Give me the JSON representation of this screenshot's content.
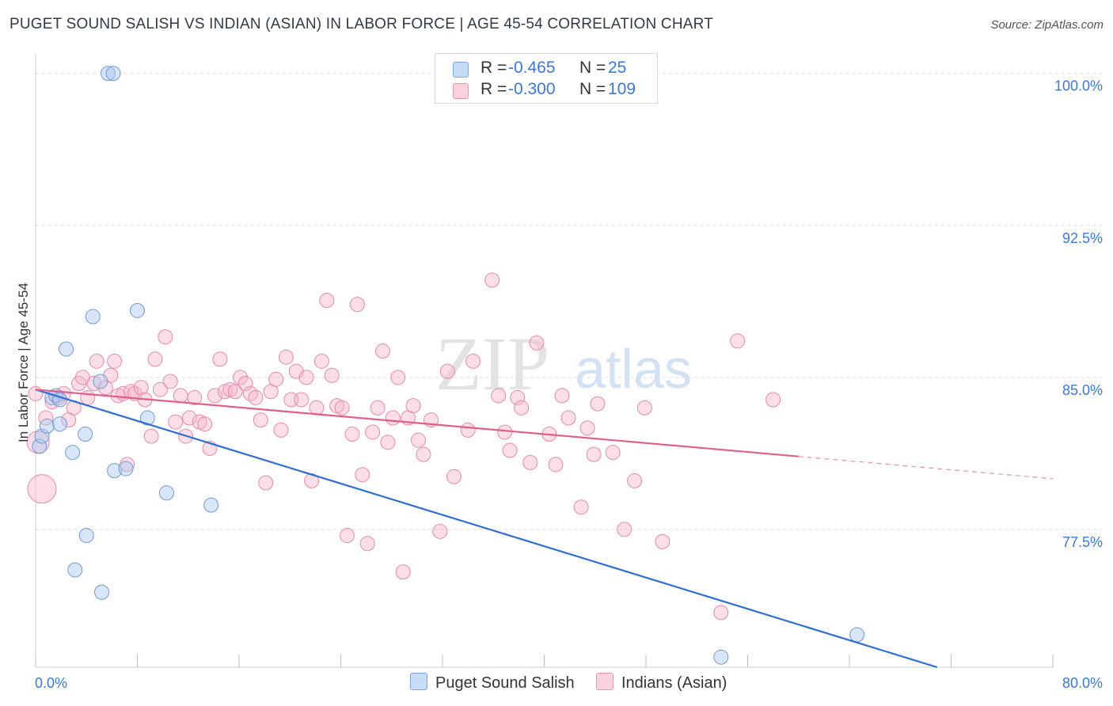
{
  "title": "PUGET SOUND SALISH VS INDIAN (ASIAN) IN LABOR FORCE | AGE 45-54 CORRELATION CHART",
  "source": "Source: ZipAtlas.com",
  "watermark": {
    "zip": "ZIP",
    "atlas": "atlas"
  },
  "legend_top": {
    "rows": [
      {
        "r_label": "R =",
        "r_value": "-0.465",
        "n_label": "N =",
        "n_value": "25",
        "color": "#a9c8f0"
      },
      {
        "r_label": "R =",
        "r_value": "-0.300",
        "n_label": "N =",
        "n_value": "109",
        "color": "#f7b6ca"
      }
    ]
  },
  "chart_data": {
    "type": "scatter",
    "xlabel": "",
    "ylabel": "In Labor Force | Age 45-54",
    "xlim": [
      0,
      80
    ],
    "ylim": [
      70.7,
      101.2
    ],
    "x_tick_labels": [
      "0.0%",
      "80.0%"
    ],
    "y_ticks": [
      77.5,
      85.0,
      92.5,
      100.0
    ],
    "y_tick_labels": [
      "77.5%",
      "85.0%",
      "92.5%",
      "100.0%"
    ],
    "grid": true,
    "legend_placement": "bottom",
    "series": [
      {
        "name": "Puget Sound Salish",
        "color": "#a9c8f0",
        "stroke": "#6d9bd8",
        "trend_color": "#2f6fd1",
        "trend": {
          "x": [
            0,
            70.9
          ],
          "y": [
            84.4,
            70.7
          ]
        },
        "points": [
          [
            0.3,
            81.6
          ],
          [
            0.5,
            82.1
          ],
          [
            0.9,
            82.6
          ],
          [
            1.3,
            84.0
          ],
          [
            1.6,
            84.1
          ],
          [
            1.9,
            83.9
          ],
          [
            1.9,
            82.7
          ],
          [
            2.4,
            86.4
          ],
          [
            2.9,
            81.3
          ],
          [
            3.1,
            75.5
          ],
          [
            3.9,
            82.2
          ],
          [
            4.0,
            77.2
          ],
          [
            4.5,
            88.0
          ],
          [
            5.1,
            84.8
          ],
          [
            5.2,
            74.4
          ],
          [
            5.7,
            100.0
          ],
          [
            6.1,
            100.0
          ],
          [
            6.2,
            80.4
          ],
          [
            7.1,
            80.5
          ],
          [
            8.0,
            88.3
          ],
          [
            8.8,
            83.0
          ],
          [
            10.3,
            79.3
          ],
          [
            13.8,
            78.7
          ],
          [
            53.9,
            71.2
          ],
          [
            64.6,
            72.3
          ]
        ]
      },
      {
        "name": "Indians (Asian)",
        "color": "#f7b6ca",
        "stroke": "#e88aa8",
        "trend_color": "#e0608a",
        "trend": {
          "x": [
            0,
            60
          ],
          "y": [
            84.4,
            81.1
          ]
        },
        "trend_dashed": {
          "x": [
            60,
            80
          ],
          "y": [
            81.1,
            80.0
          ]
        },
        "points": [
          [
            0.2,
            81.8
          ],
          [
            0.5,
            79.5
          ],
          [
            0.8,
            83.0
          ],
          [
            1.3,
            83.8
          ],
          [
            1.8,
            84.0
          ],
          [
            2.2,
            84.2
          ],
          [
            2.6,
            82.9
          ],
          [
            3.0,
            83.5
          ],
          [
            3.4,
            84.7
          ],
          [
            3.7,
            85.0
          ],
          [
            4.1,
            84.0
          ],
          [
            4.6,
            84.7
          ],
          [
            4.8,
            85.8
          ],
          [
            5.5,
            84.5
          ],
          [
            5.9,
            85.1
          ],
          [
            6.2,
            85.8
          ],
          [
            6.5,
            84.1
          ],
          [
            6.9,
            84.2
          ],
          [
            7.2,
            80.7
          ],
          [
            7.5,
            84.3
          ],
          [
            7.8,
            84.2
          ],
          [
            8.3,
            84.5
          ],
          [
            8.6,
            83.9
          ],
          [
            9.1,
            82.1
          ],
          [
            9.4,
            85.9
          ],
          [
            9.8,
            84.4
          ],
          [
            10.2,
            87.0
          ],
          [
            10.6,
            84.8
          ],
          [
            11.0,
            82.8
          ],
          [
            11.4,
            84.1
          ],
          [
            11.8,
            82.1
          ],
          [
            12.1,
            83.0
          ],
          [
            12.5,
            84.0
          ],
          [
            12.9,
            82.8
          ],
          [
            13.3,
            82.7
          ],
          [
            13.7,
            81.5
          ],
          [
            14.1,
            84.1
          ],
          [
            14.5,
            85.9
          ],
          [
            14.9,
            84.3
          ],
          [
            15.3,
            84.4
          ],
          [
            15.7,
            84.3
          ],
          [
            16.1,
            85.0
          ],
          [
            16.5,
            84.7
          ],
          [
            16.9,
            84.2
          ],
          [
            17.3,
            84.0
          ],
          [
            17.7,
            82.9
          ],
          [
            18.1,
            79.8
          ],
          [
            18.5,
            84.3
          ],
          [
            18.9,
            84.9
          ],
          [
            19.3,
            82.4
          ],
          [
            19.7,
            86.0
          ],
          [
            20.1,
            83.9
          ],
          [
            20.5,
            85.3
          ],
          [
            20.9,
            83.9
          ],
          [
            21.3,
            85.0
          ],
          [
            21.7,
            79.9
          ],
          [
            22.1,
            83.5
          ],
          [
            22.5,
            85.8
          ],
          [
            22.9,
            88.8
          ],
          [
            23.3,
            85.1
          ],
          [
            23.7,
            83.6
          ],
          [
            24.1,
            83.5
          ],
          [
            24.5,
            77.2
          ],
          [
            24.9,
            82.2
          ],
          [
            25.3,
            88.6
          ],
          [
            25.7,
            80.2
          ],
          [
            26.1,
            76.8
          ],
          [
            26.5,
            82.3
          ],
          [
            26.9,
            83.5
          ],
          [
            27.3,
            86.3
          ],
          [
            27.7,
            81.8
          ],
          [
            28.1,
            83.0
          ],
          [
            28.5,
            85.0
          ],
          [
            28.9,
            75.4
          ],
          [
            29.3,
            83.0
          ],
          [
            29.7,
            83.6
          ],
          [
            30.1,
            81.9
          ],
          [
            30.5,
            81.2
          ],
          [
            31.1,
            82.9
          ],
          [
            31.8,
            77.4
          ],
          [
            32.4,
            85.3
          ],
          [
            32.9,
            80.1
          ],
          [
            34.0,
            82.4
          ],
          [
            34.4,
            85.8
          ],
          [
            35.9,
            89.8
          ],
          [
            36.4,
            84.1
          ],
          [
            36.9,
            82.3
          ],
          [
            37.3,
            81.4
          ],
          [
            37.9,
            84.0
          ],
          [
            38.2,
            83.5
          ],
          [
            38.9,
            80.8
          ],
          [
            39.4,
            86.7
          ],
          [
            40.4,
            82.2
          ],
          [
            40.9,
            80.7
          ],
          [
            41.4,
            84.1
          ],
          [
            41.9,
            83.0
          ],
          [
            42.9,
            78.6
          ],
          [
            43.4,
            82.5
          ],
          [
            43.9,
            81.2
          ],
          [
            44.2,
            83.7
          ],
          [
            45.4,
            81.3
          ],
          [
            46.3,
            77.5
          ],
          [
            47.1,
            79.9
          ],
          [
            47.9,
            83.5
          ],
          [
            49.3,
            76.9
          ],
          [
            53.9,
            73.4
          ],
          [
            55.2,
            86.8
          ],
          [
            58.0,
            83.9
          ],
          [
            0.0,
            84.2
          ]
        ]
      }
    ]
  }
}
